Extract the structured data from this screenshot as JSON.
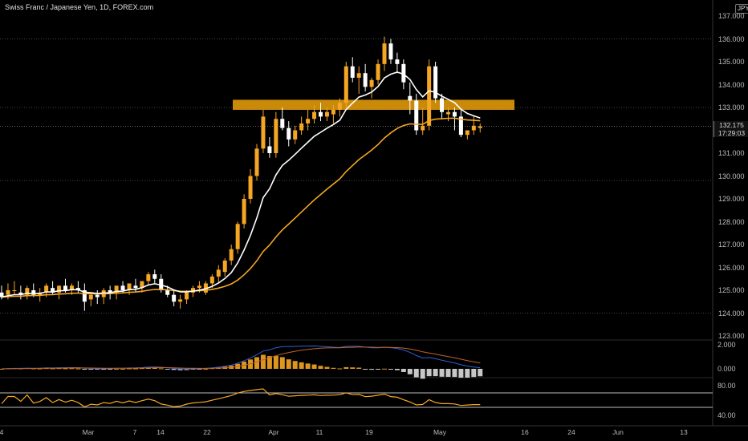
{
  "header": {
    "title": "Swiss Franc / Japanese Yen, 1D, FOREX.com",
    "currency": "JPY"
  },
  "last_price": {
    "value": "132.175",
    "countdown": "17:29:03"
  },
  "indicator_axes": {
    "macd_ticks": [
      "2.000",
      "0.000"
    ],
    "rsi_ticks": [
      "80.00",
      "40.00"
    ]
  },
  "colors": {
    "bull": "#f5a623",
    "bear": "#ffffff",
    "zone": "#d4900a",
    "ema_fast": "#ffffff",
    "ema_slow": "#f5a623",
    "macd": "#2f5fd1",
    "signal": "#c0622a",
    "rsi": "#f5a623"
  },
  "chart_data": {
    "type": "candlestick",
    "title": "Swiss Franc / Japanese Yen, 1D, FOREX.com",
    "y_axis": {
      "ticks": [
        "137.000",
        "136.000",
        "135.000",
        "134.000",
        "133.000",
        "132.000",
        "131.000",
        "130.000",
        "129.000",
        "128.000",
        "127.000",
        "126.000",
        "125.000",
        "124.000",
        "123.000"
      ],
      "ylim": [
        122.5,
        137.5
      ]
    },
    "x_ticks": [
      "4",
      "Mar",
      "7",
      "14",
      "22",
      "Apr",
      "11",
      "19",
      "May",
      "16",
      "24",
      "Jun",
      "13"
    ],
    "resistance_zone": {
      "from": 133.0,
      "to": 133.3
    },
    "candles": [
      [
        124.9,
        125.2,
        124.6,
        124.7
      ],
      [
        124.8,
        125.3,
        124.6,
        125.0
      ],
      [
        125.0,
        125.4,
        124.8,
        125.0
      ],
      [
        124.9,
        125.2,
        124.6,
        124.8
      ],
      [
        124.8,
        125.2,
        124.6,
        125.1
      ],
      [
        125.0,
        125.3,
        124.7,
        124.8
      ],
      [
        124.8,
        125.1,
        124.5,
        124.9
      ],
      [
        124.9,
        125.3,
        124.7,
        125.2
      ],
      [
        125.1,
        125.4,
        124.8,
        124.9
      ],
      [
        124.9,
        125.2,
        124.6,
        125.2
      ],
      [
        125.2,
        125.5,
        124.9,
        125.0
      ],
      [
        125.0,
        125.3,
        124.8,
        125.2
      ],
      [
        125.1,
        125.4,
        124.9,
        125.0
      ],
      [
        125.0,
        125.3,
        124.1,
        124.5
      ],
      [
        124.6,
        124.9,
        124.3,
        124.8
      ],
      [
        124.8,
        125.0,
        124.4,
        124.7
      ],
      [
        124.7,
        125.1,
        124.4,
        125.0
      ],
      [
        125.0,
        125.2,
        124.6,
        124.9
      ],
      [
        124.9,
        125.2,
        124.6,
        125.2
      ],
      [
        125.2,
        125.4,
        124.9,
        125.0
      ],
      [
        125.0,
        125.3,
        124.8,
        125.3
      ],
      [
        125.2,
        125.5,
        124.9,
        125.1
      ],
      [
        125.1,
        125.4,
        124.9,
        125.4
      ],
      [
        125.4,
        125.8,
        125.2,
        125.7
      ],
      [
        125.7,
        125.9,
        125.3,
        125.5
      ],
      [
        125.5,
        125.7,
        124.9,
        125.0
      ],
      [
        125.0,
        125.2,
        124.7,
        124.8
      ],
      [
        124.8,
        125.0,
        124.3,
        124.5
      ],
      [
        124.5,
        124.8,
        124.2,
        124.6
      ],
      [
        124.6,
        125.0,
        124.4,
        124.9
      ],
      [
        124.9,
        125.2,
        124.7,
        125.1
      ],
      [
        125.1,
        125.4,
        124.9,
        125.2
      ],
      [
        124.9,
        125.4,
        124.8,
        125.3
      ],
      [
        125.3,
        125.7,
        125.1,
        125.6
      ],
      [
        125.6,
        126.1,
        125.3,
        125.9
      ],
      [
        125.8,
        126.4,
        125.6,
        126.3
      ],
      [
        126.3,
        127.0,
        126.1,
        126.8
      ],
      [
        126.8,
        128.0,
        126.6,
        127.9
      ],
      [
        127.9,
        129.2,
        127.7,
        129.0
      ],
      [
        129.0,
        130.3,
        128.8,
        130.0
      ],
      [
        130.0,
        131.4,
        129.8,
        131.2
      ],
      [
        131.2,
        132.9,
        131.0,
        132.6
      ],
      [
        131.3,
        131.7,
        130.8,
        131.0
      ],
      [
        131.0,
        132.8,
        130.8,
        132.5
      ],
      [
        132.5,
        133.0,
        132.0,
        132.1
      ],
      [
        132.1,
        132.4,
        131.3,
        131.6
      ],
      [
        131.6,
        132.2,
        131.4,
        132.0
      ],
      [
        132.0,
        132.6,
        131.8,
        132.3
      ],
      [
        132.3,
        132.9,
        132.0,
        132.5
      ],
      [
        132.5,
        133.1,
        132.3,
        132.8
      ],
      [
        132.8,
        133.2,
        132.4,
        132.6
      ],
      [
        132.6,
        133.0,
        132.4,
        132.8
      ],
      [
        132.7,
        133.1,
        132.3,
        132.9
      ],
      [
        132.9,
        133.4,
        132.6,
        133.2
      ],
      [
        133.2,
        135.0,
        133.0,
        134.8
      ],
      [
        134.8,
        135.2,
        134.1,
        134.3
      ],
      [
        134.3,
        134.8,
        133.6,
        134.5
      ],
      [
        134.5,
        134.9,
        133.7,
        133.9
      ],
      [
        133.9,
        134.3,
        133.4,
        134.2
      ],
      [
        134.2,
        135.1,
        134.0,
        134.9
      ],
      [
        134.9,
        136.1,
        134.6,
        135.8
      ],
      [
        135.8,
        136.0,
        134.9,
        135.1
      ],
      [
        135.1,
        135.4,
        134.5,
        134.9
      ],
      [
        134.9,
        135.1,
        133.8,
        134.1
      ],
      [
        133.5,
        134.1,
        132.7,
        133.3
      ],
      [
        133.3,
        133.6,
        131.8,
        132.0
      ],
      [
        132.0,
        133.0,
        131.8,
        132.2
      ],
      [
        132.2,
        135.1,
        132.0,
        134.8
      ],
      [
        134.8,
        135.0,
        133.2,
        133.4
      ],
      [
        133.4,
        133.6,
        132.5,
        132.8
      ],
      [
        132.7,
        133.0,
        132.4,
        132.8
      ],
      [
        132.8,
        133.0,
        132.0,
        132.6
      ],
      [
        132.6,
        132.9,
        131.7,
        131.8
      ],
      [
        131.8,
        132.0,
        131.6,
        132.0
      ],
      [
        132.0,
        132.6,
        131.8,
        132.2
      ],
      [
        132.1,
        132.3,
        131.9,
        132.175
      ]
    ],
    "ema_fast_len": 9,
    "ema_slow_len": 30
  }
}
